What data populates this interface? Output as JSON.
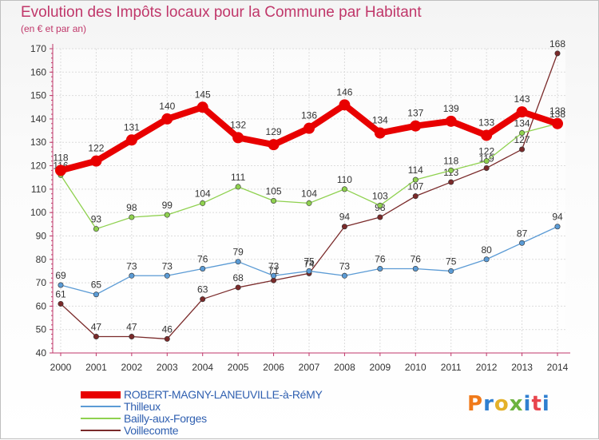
{
  "header": {
    "title": "Evolution des Impôts locaux pour la Commune par Habitant",
    "subtitle": "(en € et par an)"
  },
  "logo": {
    "text": "Proxiti",
    "colors": [
      "#f07a1a",
      "#2f7fd0",
      "#e4b12a",
      "#6db33f",
      "#2f7fd0",
      "#e8454d",
      "#2f7fd0"
    ]
  },
  "chart_data": {
    "type": "line",
    "x": [
      "2000",
      "2001",
      "2002",
      "2003",
      "2004",
      "2005",
      "2006",
      "2007",
      "2008",
      "2009",
      "2010",
      "2011",
      "2012",
      "2013",
      "2014"
    ],
    "ylim": [
      40,
      170
    ],
    "yticks": [
      40,
      50,
      60,
      70,
      80,
      90,
      100,
      110,
      120,
      130,
      140,
      150,
      160,
      170
    ],
    "grid": true,
    "legend_position": "bottom-left",
    "series": [
      {
        "name": "ROBERT-MAGNY-LANEUVILLE-à-RéMY",
        "color": "#e80000",
        "values": [
          118,
          122,
          131,
          140,
          145,
          132,
          129,
          136,
          146,
          134,
          137,
          139,
          133,
          143,
          138
        ]
      },
      {
        "name": "Thilleux",
        "color": "#5b9bd5",
        "values": [
          69,
          65,
          73,
          73,
          76,
          79,
          73,
          75,
          73,
          76,
          76,
          75,
          80,
          87,
          94
        ]
      },
      {
        "name": "Bailly-aux-Forges",
        "color": "#8fd14f",
        "values": [
          116,
          93,
          98,
          99,
          104,
          111,
          105,
          104,
          110,
          103,
          114,
          118,
          122,
          134,
          138
        ]
      },
      {
        "name": "Voillecomte",
        "color": "#7a2a2a",
        "values": [
          61,
          47,
          47,
          46,
          63,
          68,
          71,
          74,
          94,
          98,
          107,
          113,
          119,
          127,
          168
        ]
      }
    ]
  }
}
